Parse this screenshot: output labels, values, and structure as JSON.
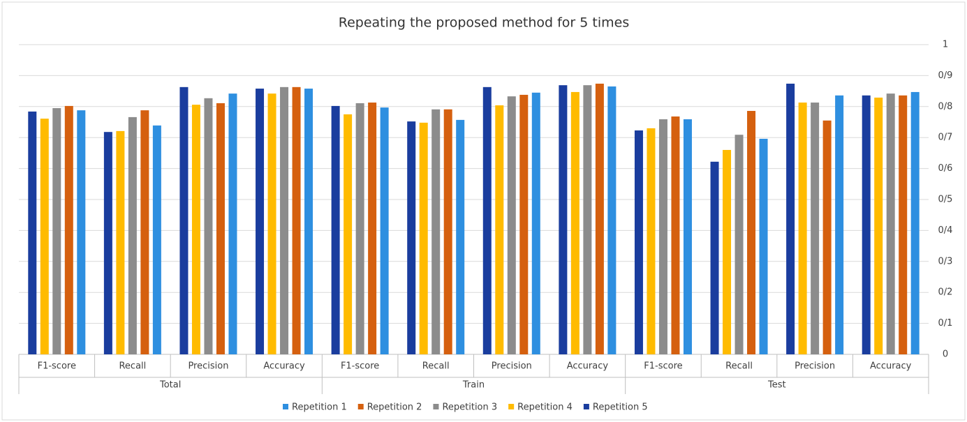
{
  "chart_data": {
    "type": "bar",
    "title": "Repeating the proposed method for 5 times",
    "groups": [
      {
        "label": "Total",
        "categories": [
          "F1-score",
          "Recall",
          "Precision",
          "Accuracy"
        ]
      },
      {
        "label": "Train",
        "categories": [
          "F1-score",
          "Recall",
          "Precision",
          "Accuracy"
        ]
      },
      {
        "label": "Test",
        "categories": [
          "F1-score",
          "Recall",
          "Precision",
          "Accuracy"
        ]
      }
    ],
    "series": [
      {
        "name": "Repetition 1",
        "color": "#2e8fe0",
        "values": [
          0.788,
          0.739,
          0.842,
          0.858,
          0.797,
          0.757,
          0.845,
          0.865,
          0.759,
          0.696,
          0.836,
          0.847
        ]
      },
      {
        "name": "Repetition 2",
        "color": "#d5600f",
        "values": [
          0.802,
          0.788,
          0.811,
          0.863,
          0.813,
          0.791,
          0.838,
          0.874,
          0.768,
          0.786,
          0.755,
          0.836
        ]
      },
      {
        "name": "Repetition 3",
        "color": "#8c8c8c",
        "values": [
          0.795,
          0.766,
          0.827,
          0.863,
          0.811,
          0.791,
          0.833,
          0.869,
          0.759,
          0.709,
          0.813,
          0.842
        ]
      },
      {
        "name": "Repetition 4",
        "color": "#ffbb00",
        "values": [
          0.761,
          0.721,
          0.806,
          0.842,
          0.775,
          0.748,
          0.804,
          0.847,
          0.73,
          0.66,
          0.813,
          0.829
        ]
      },
      {
        "name": "Repetition 5",
        "color": "#1a3d9e",
        "values": [
          0.784,
          0.718,
          0.863,
          0.858,
          0.802,
          0.752,
          0.863,
          0.869,
          0.723,
          0.622,
          0.874,
          0.836
        ]
      }
    ],
    "ylim": [
      0,
      1
    ],
    "yticks": [
      0,
      {
        "value": 0.1,
        "label": "0/1"
      },
      {
        "value": 0.2,
        "label": "0/2"
      },
      {
        "value": 0.3,
        "label": "0/3"
      },
      {
        "value": 0.4,
        "label": "0/4"
      },
      {
        "value": 0.5,
        "label": "0/5"
      },
      {
        "value": 0.6,
        "label": "0/6"
      },
      {
        "value": 0.7,
        "label": "0/7"
      },
      {
        "value": 0.8,
        "label": "0/8"
      },
      {
        "value": 0.9,
        "label": "0/9"
      },
      1
    ],
    "grid": true,
    "y_axis_side": "right",
    "legend": "bottom"
  }
}
